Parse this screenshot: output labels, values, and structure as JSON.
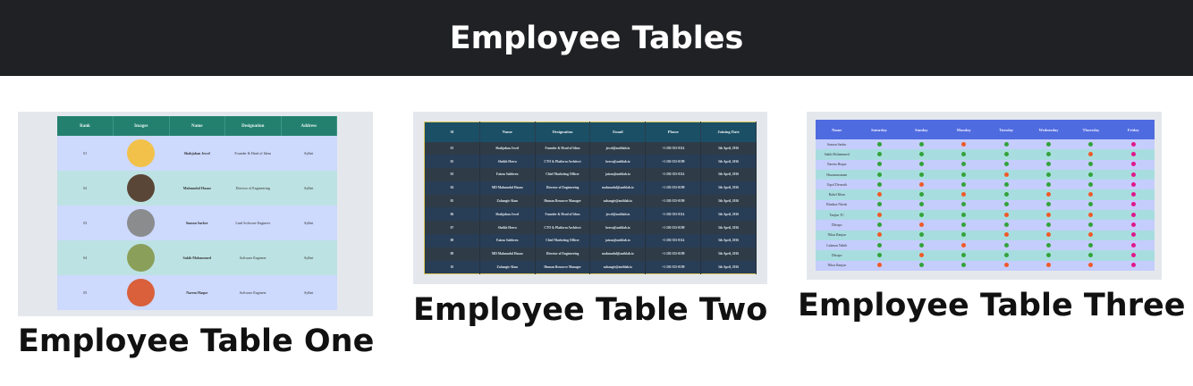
{
  "header": {
    "title": "Employee Tables"
  },
  "colors": {
    "header_bg": "#202124",
    "green": "#33a33a",
    "red": "#f05a28",
    "pink": "#e0198c"
  },
  "cards": [
    {
      "caption": "Employee Table One",
      "columns": [
        "Rank",
        "Images",
        "Name",
        "Designation",
        "Address"
      ],
      "rows": [
        {
          "rank": "01",
          "avatar": "#f2c14a",
          "name": "Shahjahan Jewel",
          "designation": "Founder & Head of Ideas",
          "address": "Sylhet"
        },
        {
          "rank": "02",
          "avatar": "#5a4636",
          "name": "Mahmudul Hasan",
          "designation": "Director of Engineering",
          "address": "Sylhet"
        },
        {
          "rank": "03",
          "avatar": "#8a8c8e",
          "name": "Sumon Sarker",
          "designation": "Lead Software Engineer",
          "address": "Sylhet"
        },
        {
          "rank": "04",
          "avatar": "#8aa05a",
          "name": "Sakib Mohammed",
          "designation": "Software Engineer",
          "address": "Sylhet"
        },
        {
          "rank": "05",
          "avatar": "#d9603a",
          "name": "Naeem Haque",
          "designation": "Software Engineer",
          "address": "Sylhet"
        }
      ]
    },
    {
      "caption": "Employee Table Two",
      "columns": [
        "Sl",
        "Name",
        "Designation",
        "Email",
        "Phone",
        "Joining Date"
      ],
      "rows": [
        [
          "01",
          "Shahjahan Jewel",
          "Founder & Head of Ideas",
          "jewel@authlab.io",
          "+1-202-555-0114",
          "5th April, 2016"
        ],
        [
          "02",
          "Sheikh Heera",
          "CTO & Platform Architect",
          "heera@authlab.io",
          "+1-202-555-0199",
          "5th April, 2016"
        ],
        [
          "03",
          "Faizus Saleheen",
          "Chief Marketing Officer",
          "jaizus@authlab.io",
          "+1-202-555-0114",
          "5th April, 2016"
        ],
        [
          "04",
          "MD Mahmudul Hasan",
          "Director of Engineering",
          "mahmudul@authlab.io",
          "+1-202-555-0199",
          "5th April, 2016"
        ],
        [
          "05",
          "Zahangir Alam",
          "Human Resource Manager",
          "zahangir@authlab.io",
          "+1-202-555-0199",
          "5th April, 2016"
        ],
        [
          "06",
          "Shahjahan Jewel",
          "Founder & Head of Ideas",
          "jewel@authlab.io",
          "+1-202-555-0114",
          "5th April, 2016"
        ],
        [
          "07",
          "Sheikh Heera",
          "CTO & Platform Architect",
          "heera@authlab.io",
          "+1-202-555-0199",
          "5th April, 2016"
        ],
        [
          "08",
          "Faizus Saleheen",
          "Chief Marketing Officer",
          "jaizus@authlab.io",
          "+1-202-555-0114",
          "5th April, 2016"
        ],
        [
          "09",
          "MD Mahmudul Hasan",
          "Director of Engineering",
          "mahmudul@authlab.io",
          "+1-202-555-0199",
          "5th April, 2016"
        ],
        [
          "10",
          "Zahangir Alam",
          "Human Resource Manager",
          "zahangir@authlab.io",
          "+1-202-555-0199",
          "5th April, 2016"
        ]
      ]
    },
    {
      "caption": "Employee Table Three",
      "columns": [
        "Name",
        "Saturday",
        "Sunday",
        "Monday",
        "Tuesday",
        "Wednesday",
        "Thursday",
        "Friday"
      ],
      "rows": [
        {
          "name": "Sumon Sarker",
          "status": "ggrgggp"
        },
        {
          "name": "Sakib Mohammed",
          "status": "gggggrp"
        },
        {
          "name": "Naeem Haque",
          "status": "ggggggp"
        },
        {
          "name": "Hasanuzzaman",
          "status": "gggrggp"
        },
        {
          "name": "Utpol Devnath",
          "status": "grggggp"
        },
        {
          "name": "Ruhel Khan",
          "status": "rgrgrrp"
        },
        {
          "name": "Bindaas Nitesh",
          "status": "ggggggp"
        },
        {
          "name": "Tanjim TC",
          "status": "rggrrrp"
        },
        {
          "name": "Dhrupo",
          "status": "grggggp"
        },
        {
          "name": "Nihar Ranjan",
          "status": "rggrrrp"
        },
        {
          "name": "Lukman Nahib",
          "status": "ggrgggp"
        },
        {
          "name": "Dhrupo",
          "status": "grggggp"
        },
        {
          "name": "Nihar Ranjan",
          "status": "rggrrrp"
        }
      ]
    }
  ]
}
